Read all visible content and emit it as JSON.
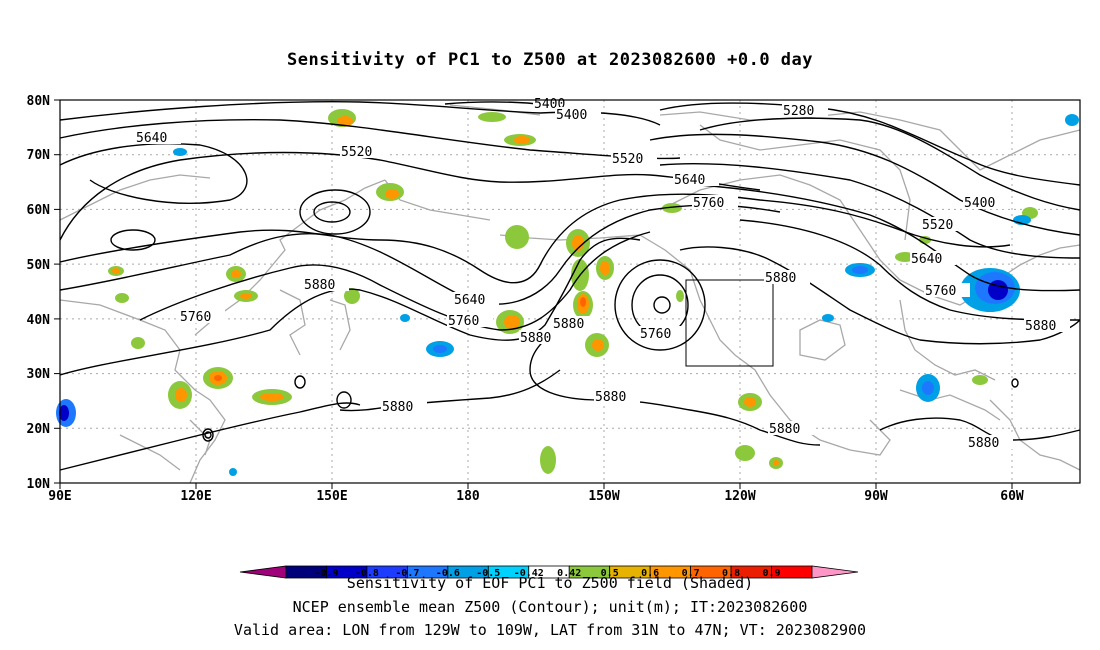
{
  "title": "Sensitivity of PC1 to Z500 at 2023082600 +0.0 day",
  "lat_labels": [
    "80N",
    "70N",
    "60N",
    "50N",
    "40N",
    "30N",
    "20N",
    "10N"
  ],
  "lon_labels": [
    "90E",
    "120E",
    "150E",
    "180",
    "150W",
    "120W",
    "90W",
    "60W"
  ],
  "contour_labels": {
    "c5400a": "5400",
    "c5400b": "5400",
    "c5280": "5280",
    "c5640a": "5640",
    "c5520a": "5520",
    "c5520b": "5520",
    "c5640b": "5640",
    "c5760a": "5760",
    "c5400c": "5400",
    "c5520c": "5520",
    "c5640c": "5640",
    "c5760b": "5760",
    "c5880a": "5880",
    "c5640d": "5640",
    "c5760c": "5760",
    "c5880b": "5880",
    "c5880c": "5880",
    "c5760d": "5760",
    "c5880d": "5880",
    "c5880e": "5880",
    "c5880f": "5880",
    "c5880g": "5880",
    "c5760e": "5760",
    "c5880h": "5880",
    "c5880i": "5880"
  },
  "colorbar": {
    "colors": [
      "#a0007a",
      "#00007a",
      "#0000c8",
      "#1e3cff",
      "#1e78ff",
      "#00a0e6",
      "#00d2ff",
      "#ffffff",
      "#8cc83c",
      "#e6b400",
      "#ff9600",
      "#ff6400",
      "#eb1e00",
      "#ff0000",
      "#ff96c8"
    ],
    "labels": [
      "-0.9",
      "-0.8",
      "-0.7",
      "-0.6",
      "-0.5",
      "-0.42",
      "0.42",
      "0.5",
      "0.6",
      "0.7",
      "0.8",
      "0.9"
    ]
  },
  "captions": [
    "Sensitivity of EOF PC1 to Z500 field (Shaded)",
    "NCEP ensemble mean Z500 (Contour); unit(m); IT:2023082600",
    "Valid area: LON from 129W to 109W, LAT from 31N to 47N; VT: 2023082900"
  ]
}
